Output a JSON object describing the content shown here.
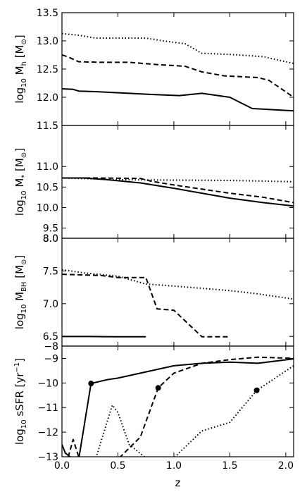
{
  "chart_data": [
    {
      "type": "line",
      "ylabel": {
        "base": "log",
        "base_sub": "10",
        "main": " M",
        "main_sub": "h",
        "unit": " [M",
        "unit_sub": "⊙",
        "close": "]"
      },
      "ylim": [
        11.5,
        13.5
      ],
      "yticks": [
        {
          "v": 11.5,
          "label": "11.5"
        },
        {
          "v": 12.0,
          "label": "12.0"
        },
        {
          "v": 12.5,
          "label": "12.5"
        },
        {
          "v": 13.0,
          "label": "13.0"
        },
        {
          "v": 13.5,
          "label": "13.5"
        }
      ],
      "series": [
        {
          "style": "solid",
          "points": [
            [
              0,
              12.15
            ],
            [
              0.1,
              12.14
            ],
            [
              0.15,
              12.11
            ],
            [
              0.3,
              12.1
            ],
            [
              0.6,
              12.07
            ],
            [
              0.8,
              12.05
            ],
            [
              1.05,
              12.03
            ],
            [
              1.25,
              12.07
            ],
            [
              1.5,
              12.0
            ],
            [
              1.7,
              11.8
            ],
            [
              2.07,
              11.76
            ]
          ]
        },
        {
          "style": "dashed",
          "points": [
            [
              0,
              12.75
            ],
            [
              0.05,
              12.72
            ],
            [
              0.15,
              12.63
            ],
            [
              0.35,
              12.62
            ],
            [
              0.6,
              12.62
            ],
            [
              0.85,
              12.58
            ],
            [
              1.1,
              12.55
            ],
            [
              1.25,
              12.45
            ],
            [
              1.45,
              12.38
            ],
            [
              1.75,
              12.35
            ],
            [
              1.85,
              12.3
            ],
            [
              2.07,
              12.0
            ]
          ]
        },
        {
          "style": "dotted",
          "points": [
            [
              0,
              13.13
            ],
            [
              0.15,
              13.1
            ],
            [
              0.3,
              13.05
            ],
            [
              0.5,
              13.05
            ],
            [
              0.75,
              13.05
            ],
            [
              0.9,
              13.0
            ],
            [
              1.1,
              12.95
            ],
            [
              1.25,
              12.78
            ],
            [
              1.5,
              12.76
            ],
            [
              1.8,
              12.72
            ],
            [
              2.07,
              12.6
            ]
          ]
        }
      ]
    },
    {
      "type": "line",
      "ylabel": {
        "base": "log",
        "base_sub": "10",
        "main": " M",
        "main_sub": "*",
        "unit": " [M",
        "unit_sub": "⊙",
        "close": "]"
      },
      "ylim": [
        8.0,
        12.0
      ],
      "yticks": [
        {
          "v": 8.0,
          "label": "8.0"
        },
        {
          "v": 9.5,
          "label": "9.5"
        },
        {
          "v": 10.0,
          "label": "10.0"
        },
        {
          "v": 10.5,
          "label": "10.5"
        },
        {
          "v": 11.0,
          "label": "11.0"
        }
      ],
      "y_axis_break": {
        "low": 8.0,
        "high": 9.5
      },
      "series": [
        {
          "style": "solid",
          "points": [
            [
              0,
              10.72
            ],
            [
              0.2,
              10.72
            ],
            [
              0.4,
              10.68
            ],
            [
              0.7,
              10.6
            ],
            [
              1.0,
              10.47
            ],
            [
              1.25,
              10.35
            ],
            [
              1.5,
              10.23
            ],
            [
              1.8,
              10.12
            ],
            [
              2.07,
              10.04
            ]
          ]
        },
        {
          "style": "dashed",
          "points": [
            [
              0,
              10.72
            ],
            [
              0.3,
              10.72
            ],
            [
              0.7,
              10.71
            ],
            [
              0.8,
              10.64
            ],
            [
              1.0,
              10.55
            ],
            [
              1.25,
              10.45
            ],
            [
              1.5,
              10.35
            ],
            [
              1.8,
              10.25
            ],
            [
              2.07,
              10.12
            ]
          ]
        },
        {
          "style": "dotted",
          "points": [
            [
              0,
              10.72
            ],
            [
              0.5,
              10.68
            ],
            [
              1.0,
              10.67
            ],
            [
              1.5,
              10.66
            ],
            [
              2.07,
              10.63
            ]
          ]
        }
      ]
    },
    {
      "type": "line",
      "ylabel": {
        "base": "log",
        "base_sub": "10",
        "main": " M",
        "main_sub": "BH",
        "unit": " [M",
        "unit_sub": "⊙",
        "close": "]"
      },
      "ylim": [
        -8,
        8.0
      ],
      "yticks": [
        {
          "v": -8,
          "label": "−8"
        },
        {
          "v": 6.5,
          "label": "6.5"
        },
        {
          "v": 7.0,
          "label": "7.0"
        },
        {
          "v": 7.5,
          "label": "7.5"
        },
        {
          "v": 8.0,
          "label": "8.0"
        }
      ],
      "y_axis_break": {
        "low": -8,
        "high": 6.5
      },
      "series": [
        {
          "style": "solid",
          "points": [
            [
              0,
              6.35
            ],
            [
              0.25,
              6.28
            ],
            [
              0.37,
              6.07
            ],
            [
              0.5,
              6.05
            ],
            [
              0.75,
              6.02
            ]
          ]
        },
        {
          "style": "dashed",
          "points": [
            [
              0,
              7.45
            ],
            [
              0.35,
              7.43
            ],
            [
              0.5,
              7.4
            ],
            [
              0.75,
              7.4
            ],
            [
              0.85,
              6.92
            ],
            [
              1.0,
              6.9
            ],
            [
              1.25,
              6.0
            ],
            [
              1.3,
              6.0
            ],
            [
              1.5,
              5.97
            ]
          ]
        },
        {
          "style": "dotted",
          "points": [
            [
              0,
              7.52
            ],
            [
              0.2,
              7.47
            ],
            [
              0.5,
              7.42
            ],
            [
              0.75,
              7.3
            ],
            [
              1.0,
              7.27
            ],
            [
              1.5,
              7.2
            ],
            [
              1.75,
              7.15
            ],
            [
              2.07,
              7.07
            ]
          ]
        }
      ]
    },
    {
      "type": "line",
      "xlabel": "z",
      "ylabel": {
        "base": "log",
        "base_sub": "10",
        "main": " sSFR",
        "main_sub": "",
        "unit": " [yr",
        "unit_sup": "−1",
        "close": "]"
      },
      "ylim": [
        -13,
        -8.5
      ],
      "yticks": [
        {
          "v": -13,
          "label": "−13"
        },
        {
          "v": -12,
          "label": "−12"
        },
        {
          "v": -11,
          "label": "−11"
        },
        {
          "v": -10,
          "label": "−10"
        },
        {
          "v": -9,
          "label": "−9"
        }
      ],
      "xlim": [
        0.0,
        2.07
      ],
      "xticks": [
        {
          "v": 0.0,
          "label": "0.0"
        },
        {
          "v": 0.5,
          "label": "0.5"
        },
        {
          "v": 1.0,
          "label": "1.0"
        },
        {
          "v": 1.5,
          "label": "1.5"
        },
        {
          "v": 2.0,
          "label": "2.0"
        }
      ],
      "series": [
        {
          "style": "solid",
          "points": [
            [
              0,
              -12.5
            ],
            [
              0.03,
              -12.85
            ],
            [
              0.1,
              -13.1
            ],
            [
              0.15,
              -13.1
            ],
            [
              0.26,
              -10.02
            ],
            [
              0.4,
              -9.87
            ],
            [
              0.5,
              -9.8
            ],
            [
              0.75,
              -9.55
            ],
            [
              1.0,
              -9.3
            ],
            [
              1.25,
              -9.2
            ],
            [
              1.5,
              -9.15
            ],
            [
              1.75,
              -9.2
            ],
            [
              2.07,
              -9.02
            ]
          ]
        },
        {
          "style": "dashed",
          "points": [
            [
              0,
              -13.1
            ],
            [
              0.05,
              -13.1
            ],
            [
              0.1,
              -12.3
            ],
            [
              0.15,
              -13.0
            ],
            [
              0.35,
              -13.1
            ],
            [
              0.5,
              -13.1
            ],
            [
              0.7,
              -12.2
            ],
            [
              0.86,
              -10.2
            ],
            [
              1.0,
              -9.6
            ],
            [
              1.25,
              -9.2
            ],
            [
              1.5,
              -9.05
            ],
            [
              1.75,
              -8.95
            ],
            [
              2.07,
              -9.0
            ]
          ]
        },
        {
          "style": "dotted",
          "points": [
            [
              0,
              -13.1
            ],
            [
              0.3,
              -13.1
            ],
            [
              0.45,
              -10.9
            ],
            [
              0.5,
              -11.2
            ],
            [
              0.6,
              -12.5
            ],
            [
              0.75,
              -13.05
            ],
            [
              1.0,
              -13.05
            ],
            [
              1.25,
              -11.95
            ],
            [
              1.5,
              -11.6
            ],
            [
              1.74,
              -10.3
            ],
            [
              2.07,
              -9.3
            ]
          ]
        }
      ],
      "markers": [
        {
          "x": 0.26,
          "y": -10.02
        },
        {
          "x": 0.86,
          "y": -10.2
        },
        {
          "x": 1.74,
          "y": -10.3
        }
      ]
    }
  ]
}
